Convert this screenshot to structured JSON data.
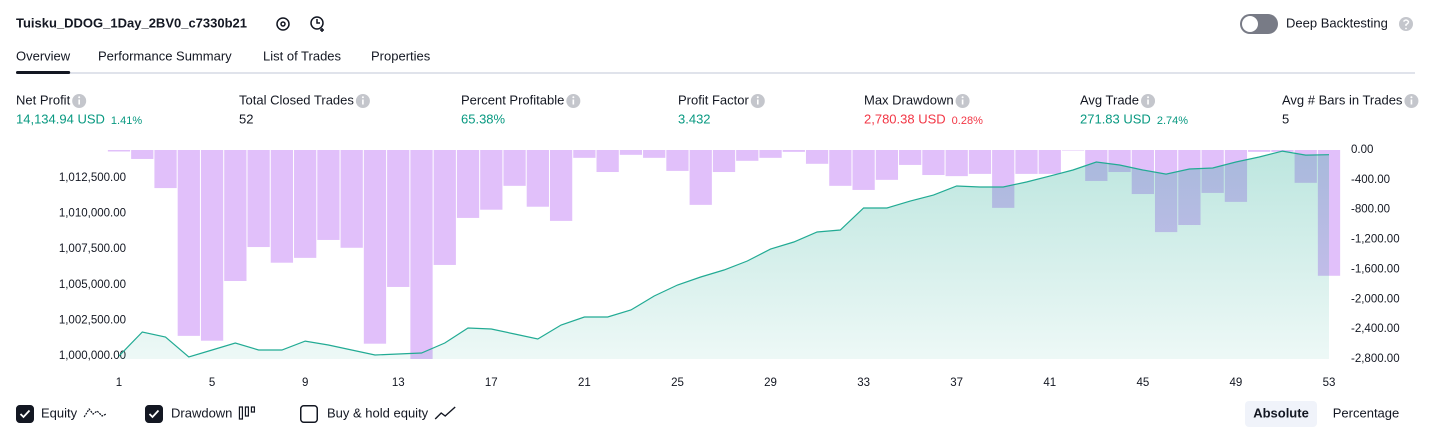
{
  "header": {
    "title": "Tuisku_DDOG_1Day_2BV0_c7330b21",
    "toggle_label": "Deep Backtesting",
    "toggle_on": false
  },
  "tabs": {
    "items": [
      "Overview",
      "Performance Summary",
      "List of Trades",
      "Properties"
    ],
    "active": 0
  },
  "stats": [
    {
      "label": "Net Profit",
      "value": "14,134.94 USD",
      "percent": "1.41%",
      "color": "#089981"
    },
    {
      "label": "Total Closed Trades",
      "value": "52",
      "color": "#131722"
    },
    {
      "label": "Percent Profitable",
      "value": "65.38%",
      "color": "#089981"
    },
    {
      "label": "Profit Factor",
      "value": "3.432",
      "color": "#089981"
    },
    {
      "label": "Max Drawdown",
      "value": "2,780.38 USD",
      "percent": "0.28%",
      "color": "#f23645"
    },
    {
      "label": "Avg Trade",
      "value": "271.83 USD",
      "percent": "2.74%",
      "color": "#089981"
    },
    {
      "label": "Avg # Bars in Trades",
      "value": "5",
      "color": "#131722"
    }
  ],
  "chart_data": {
    "type": "line",
    "x": [
      1,
      2,
      3,
      4,
      5,
      6,
      7,
      8,
      9,
      10,
      11,
      12,
      13,
      14,
      15,
      16,
      17,
      18,
      19,
      20,
      21,
      22,
      23,
      24,
      25,
      26,
      27,
      28,
      29,
      30,
      31,
      32,
      33,
      34,
      35,
      36,
      37,
      38,
      39,
      40,
      41,
      42,
      43,
      44,
      45,
      46,
      47,
      48,
      49,
      50,
      51,
      52,
      53
    ],
    "xlim": [
      1,
      53
    ],
    "xticks": [
      1,
      5,
      9,
      13,
      17,
      21,
      25,
      29,
      33,
      37,
      41,
      45,
      49,
      53
    ],
    "series": [
      {
        "name": "Equity",
        "color": "#22ab94",
        "type": "line",
        "values": [
          1000000,
          1001685,
          1001335,
          999930,
          1000420,
          1000910,
          1000420,
          1000420,
          1001050,
          1000770,
          1000420,
          1000070,
          1000140,
          1000210,
          1000910,
          1001965,
          1001895,
          1001545,
          1001195,
          1002175,
          1002740,
          1002740,
          1003230,
          1004215,
          1004985,
          1005545,
          1006040,
          1006670,
          1007510,
          1008005,
          1008705,
          1008845,
          1010390,
          1010390,
          1010880,
          1011300,
          1011935,
          1011865,
          1011865,
          1012215,
          1012635,
          1013060,
          1013620,
          1013410,
          1013060,
          1012775,
          1013130,
          1013200,
          1013620,
          1013970,
          1014390,
          1014110,
          1014135
        ]
      },
      {
        "name": "Drawdown",
        "color": "#c98df5",
        "type": "bar",
        "axis": "y2",
        "values": [
          -20,
          -120,
          -510,
          -2490,
          -2555,
          -1755,
          -1300,
          -1510,
          -1445,
          -1205,
          -1310,
          -2595,
          -1835,
          -2800,
          -1540,
          -910,
          -800,
          -480,
          -760,
          -950,
          -105,
          -295,
          -65,
          -105,
          -280,
          -735,
          -295,
          -145,
          -105,
          -25,
          -185,
          -480,
          -535,
          -400,
          -200,
          -335,
          -350,
          -320,
          -775,
          -320,
          -320,
          0,
          -415,
          -295,
          -590,
          -1100,
          -1005,
          -575,
          -695,
          -25,
          -25,
          -440,
          -1685
        ]
      }
    ],
    "ylim": [
      999790,
      1014465
    ],
    "yticks": [
      {
        "value": 1000000,
        "label": "1,000,000.00"
      },
      {
        "value": 1002500,
        "label": "1,002,500.00"
      },
      {
        "value": 1005000,
        "label": "1,005,000.00"
      },
      {
        "value": 1007500,
        "label": "1,007,500.00"
      },
      {
        "value": 1010000,
        "label": "1,010,000.00"
      },
      {
        "value": 1012500,
        "label": "1,012,500.00"
      }
    ],
    "y2lim": [
      -2800,
      0
    ],
    "y2ticks": [
      {
        "value": 0,
        "label": "0.00"
      },
      {
        "value": -400,
        "label": "-400.00"
      },
      {
        "value": -800,
        "label": "-800.00"
      },
      {
        "value": -1200,
        "label": "-1,200.00"
      },
      {
        "value": -1600,
        "label": "-1,600.00"
      },
      {
        "value": -2000,
        "label": "-2,000.00"
      },
      {
        "value": -2400,
        "label": "-2,400.00"
      },
      {
        "value": -2800,
        "label": "-2,800.00"
      }
    ]
  },
  "controls": {
    "checks": [
      true,
      true,
      false
    ],
    "buy_hold_label": "Buy & hold equity",
    "modes": [
      "Absolute",
      "Percentage"
    ],
    "active_mode": 0
  }
}
